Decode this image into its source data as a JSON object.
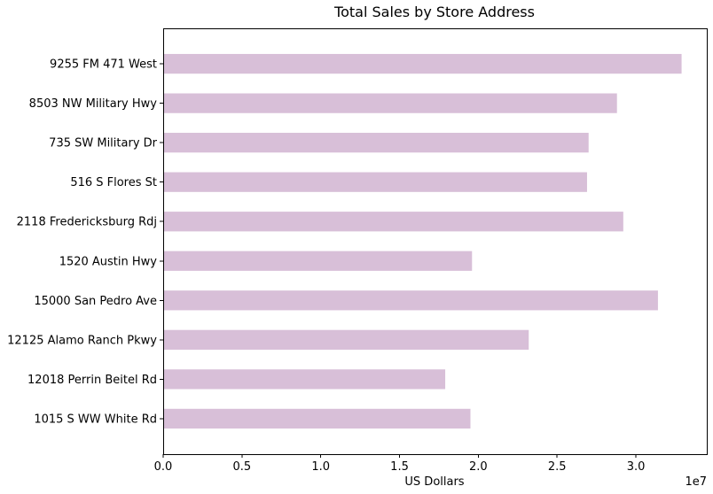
{
  "chart_data": {
    "type": "bar",
    "orientation": "horizontal",
    "title": "Total Sales by Store Address",
    "xlabel": "US Dollars",
    "ylabel": "",
    "x_scale_label": "1e7",
    "xlim": [
      0,
      34500000
    ],
    "xticks": [
      0,
      5000000,
      10000000,
      15000000,
      20000000,
      25000000,
      30000000
    ],
    "xtick_labels": [
      "0.0",
      "0.5",
      "1.0",
      "1.5",
      "2.0",
      "2.5",
      "3.0"
    ],
    "categories": [
      "1015 S WW White Rd",
      "12018 Perrin Beitel Rd",
      "12125 Alamo Ranch Pkwy",
      "15000 San Pedro Ave",
      "1520 Austin Hwy",
      "2118 Fredericksburg Rdj",
      "516 S Flores St",
      "735 SW Military Dr",
      "8503 NW Military Hwy",
      "9255 FM 471 West"
    ],
    "values": [
      19500000,
      17900000,
      23200000,
      31400000,
      19600000,
      29200000,
      26900000,
      27000000,
      28800000,
      32900000
    ],
    "bar_color": "#d8bfd8",
    "grid": false,
    "legend": false
  }
}
